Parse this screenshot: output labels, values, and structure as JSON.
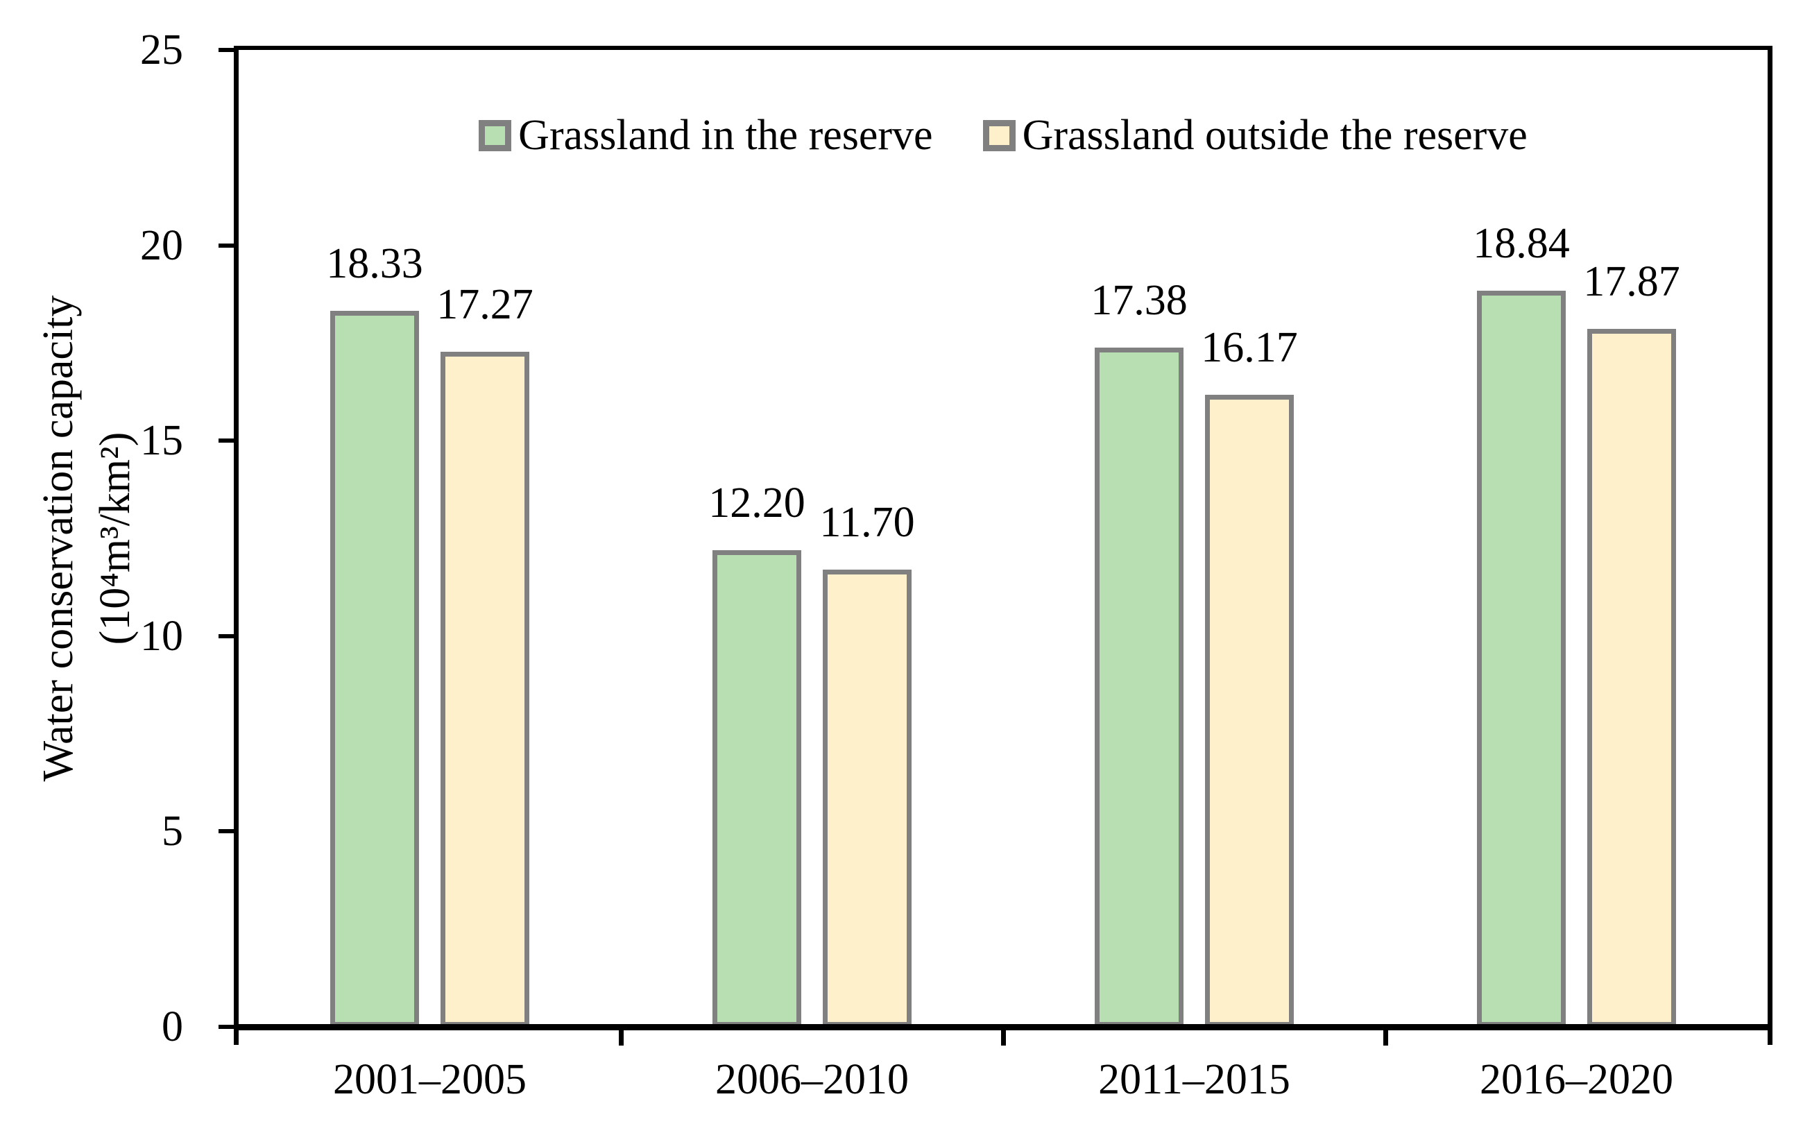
{
  "chart_data": {
    "type": "bar",
    "title": "",
    "xlabel": "",
    "ylabel": "Water conservation capacity (10⁴m³/km²)",
    "ylabel_lines": [
      "Water conservation capacity",
      "(10⁴m³/km²)"
    ],
    "ylim": [
      0,
      25
    ],
    "yticks": [
      0,
      5,
      10,
      15,
      20,
      25
    ],
    "grid": false,
    "legend_position": "top-center-inside",
    "value_decimals": 2,
    "categories": [
      "2001–2005",
      "2006–2010",
      "2011–2015",
      "2016–2020"
    ],
    "series": [
      {
        "name": "Grassland in the reserve",
        "color": "#b7dfb1",
        "border_color": "#808080",
        "values": [
          18.33,
          12.2,
          17.38,
          18.84
        ]
      },
      {
        "name": "Grassland outside the reserve",
        "color": "#fdf0ca",
        "border_color": "#808080",
        "values": [
          17.27,
          11.7,
          16.17,
          17.87
        ]
      }
    ],
    "axis_color": "#000000",
    "text_color": "#000000",
    "background": "#ffffff"
  }
}
